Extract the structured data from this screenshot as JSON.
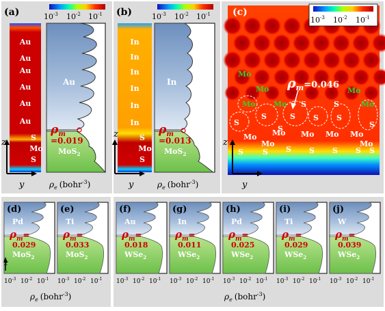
{
  "colorbar": {
    "ticks": [
      "10",
      "10",
      "10"
    ],
    "exps": [
      "-3",
      "-2",
      "-1"
    ],
    "colors": [
      "#1010c0",
      "#00a0ff",
      "#00ffb0",
      "#b0ff00",
      "#ffd000",
      "#ff3000",
      "#b00000"
    ]
  },
  "panel_a": {
    "label": "(a)",
    "metal": "Au",
    "layer_atoms": [
      "S",
      "Mo",
      "S"
    ],
    "rho_sym": "ρ",
    "rho_sub": "m",
    "rho_value": "=0.019",
    "interface": "MoS",
    "interface_sub": "2",
    "metal_label": "Au"
  },
  "panel_b": {
    "label": "(b)",
    "metal": "In",
    "layer_atoms": [
      "S",
      "Mo",
      "S"
    ],
    "rho_sym": "ρ",
    "rho_sub": "m",
    "rho_value": "=0.013",
    "interface": "MoS",
    "interface_sub": "2",
    "metal_label": "In"
  },
  "panel_c": {
    "label": "(c)",
    "rho_sym": "ρ",
    "rho_sub": "m",
    "rho_value": "=0.046",
    "mo_labels": [
      "Mo",
      "Mo",
      "Mo",
      "Mo",
      "Mo",
      "Mo"
    ],
    "s_labels": [
      "S",
      "S",
      "S",
      "S",
      "S",
      "S",
      "S",
      "S",
      "S"
    ],
    "bottom_mo": [
      "Mo",
      "Mo",
      "Mo",
      "Mo",
      "Mo",
      "Mo",
      "Mo"
    ],
    "bottom_s": [
      "S",
      "S",
      "S",
      "S",
      "S",
      "S",
      "S"
    ]
  },
  "axes": {
    "z": "z",
    "y": "y",
    "rho_e": "ρ",
    "rho_e_sub": "e",
    "unit": "(bohr",
    "unit_exp": "-3",
    "unit_close": ")"
  },
  "bottom_panels": [
    {
      "label": "(d)",
      "metal": "Pd",
      "rho": "ρ",
      "rho_sub": "m",
      "eq": "=",
      "value": "0.029",
      "semi": "MoS",
      "semi_sub": "2"
    },
    {
      "label": "(e)",
      "metal": "Ti",
      "rho": "ρ",
      "rho_sub": "m",
      "eq": "=",
      "value": "0.033",
      "semi": "MoS",
      "semi_sub": "2"
    },
    {
      "label": "(f)",
      "metal": "Au",
      "rho": "ρ",
      "rho_sub": "m",
      "eq": "=",
      "value": "0.018",
      "semi": "WSe",
      "semi_sub": "2"
    },
    {
      "label": "(g)",
      "metal": "In",
      "rho": "ρ",
      "rho_sub": "m",
      "eq": "=",
      "value": "0.011",
      "semi": "WSe",
      "semi_sub": "2"
    },
    {
      "label": "(h)",
      "metal": "Pd",
      "rho": "ρ",
      "rho_sub": "m",
      "eq": "=",
      "value": "0.025",
      "semi": "WSe",
      "semi_sub": "2"
    },
    {
      "label": "(i)",
      "metal": "Ti",
      "rho": "ρ",
      "rho_sub": "m",
      "eq": "=",
      "value": "0.029",
      "semi": "WSe",
      "semi_sub": "2"
    },
    {
      "label": "(j)",
      "metal": "W",
      "rho": "ρ",
      "rho_sub": "m",
      "eq": "=",
      "value": "0.039",
      "semi": "WSe",
      "semi_sub": "2"
    }
  ],
  "bottom_ticks": [
    "10",
    "10",
    "10"
  ],
  "bottom_tick_exps": [
    "-3",
    "-2",
    "-1"
  ]
}
